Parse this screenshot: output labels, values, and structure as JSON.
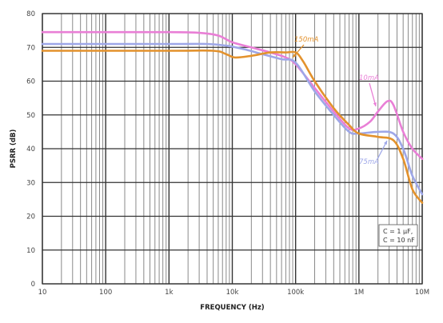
{
  "chart_data": {
    "type": "line",
    "xlabel": "FREQUENCY (Hz)",
    "ylabel": "PSRR (dB)",
    "xscale": "log",
    "xlim": [
      10,
      10000000
    ],
    "ylim": [
      0,
      80
    ],
    "grid": true,
    "x_tick_values": [
      10,
      100,
      1000,
      10000,
      100000,
      1000000,
      10000000
    ],
    "x_tick_labels": [
      "10",
      "100",
      "1k",
      "10k",
      "100k",
      "1M",
      "10M"
    ],
    "y_tick_values": [
      0,
      10,
      20,
      30,
      40,
      50,
      60,
      70,
      80
    ],
    "y_tick_labels": [
      "0",
      "10",
      "20",
      "30",
      "40",
      "50",
      "60",
      "70",
      "80"
    ],
    "series": [
      {
        "name": "10mA",
        "color": "#e97fd6",
        "points": [
          [
            10,
            74.5
          ],
          [
            1000,
            74.5
          ],
          [
            3000,
            74.3
          ],
          [
            6000,
            73.5
          ],
          [
            10000,
            71.5
          ],
          [
            20000,
            70
          ],
          [
            40000,
            68.5
          ],
          [
            70000,
            67
          ],
          [
            100000,
            65
          ],
          [
            200000,
            58
          ],
          [
            400000,
            51
          ],
          [
            700000,
            46
          ],
          [
            1000000,
            46
          ],
          [
            1500000,
            48
          ],
          [
            2000000,
            51
          ],
          [
            2800000,
            54
          ],
          [
            3500000,
            53
          ],
          [
            5000000,
            45
          ],
          [
            7000000,
            40
          ],
          [
            10000000,
            37
          ]
        ]
      },
      {
        "name": "75mA",
        "color": "#9ea7e8",
        "points": [
          [
            10,
            71
          ],
          [
            1000,
            71
          ],
          [
            4000,
            71
          ],
          [
            8000,
            70.5
          ],
          [
            15000,
            69.5
          ],
          [
            30000,
            68
          ],
          [
            60000,
            66.5
          ],
          [
            100000,
            65.5
          ],
          [
            200000,
            57
          ],
          [
            400000,
            50
          ],
          [
            700000,
            45
          ],
          [
            1000000,
            44.5
          ],
          [
            2000000,
            45
          ],
          [
            3500000,
            44.5
          ],
          [
            5000000,
            40
          ],
          [
            7000000,
            32
          ],
          [
            10000000,
            26.5
          ]
        ]
      },
      {
        "name": "150mA",
        "color": "#e3922d",
        "points": [
          [
            10,
            69
          ],
          [
            1000,
            69
          ],
          [
            5000,
            69
          ],
          [
            8000,
            68
          ],
          [
            11000,
            67
          ],
          [
            20000,
            67.5
          ],
          [
            40000,
            68.5
          ],
          [
            70000,
            68.5
          ],
          [
            100000,
            68.5
          ],
          [
            130000,
            66
          ],
          [
            200000,
            60
          ],
          [
            400000,
            52
          ],
          [
            700000,
            47
          ],
          [
            1000000,
            44.5
          ],
          [
            2000000,
            43.5
          ],
          [
            3500000,
            42.5
          ],
          [
            5000000,
            37
          ],
          [
            7000000,
            28
          ],
          [
            10000000,
            24
          ]
        ]
      }
    ],
    "annotations": [
      {
        "text": "150mA",
        "series": "150mA",
        "color": "#e3922d"
      },
      {
        "text": "10mA",
        "series": "10mA",
        "color": "#e97fd6"
      },
      {
        "text": "75mA",
        "series": "75mA",
        "color": "#9ea7e8"
      }
    ],
    "condition_box": [
      "C   =  1 µF,",
      "C   = 10 nF"
    ]
  }
}
